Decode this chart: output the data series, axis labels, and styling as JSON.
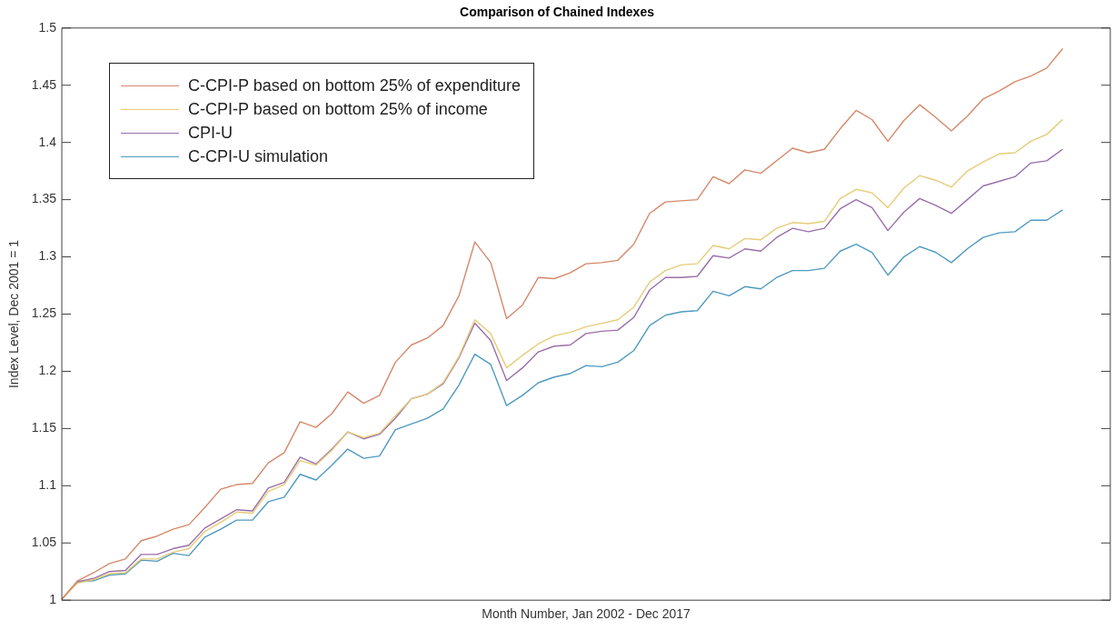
{
  "chart_data": {
    "type": "line",
    "title": "Comparison of Chained Indexes",
    "xlabel": "Month Number, Jan 2002 - Dec 2017",
    "ylabel": "Index Level, Dec 2001 = 1",
    "categories": [
      null,
      null,
      null,
      null,
      null,
      null,
      null,
      null,
      null,
      null,
      null,
      null,
      null,
      null,
      null,
      null,
      null,
      null,
      null,
      null,
      null,
      null,
      null,
      null,
      null,
      null,
      null,
      null,
      null,
      null,
      null,
      null,
      null,
      null,
      null,
      null,
      null,
      null,
      null,
      null,
      null,
      null,
      null,
      null,
      null,
      null,
      null,
      null,
      null,
      null,
      null,
      null,
      null,
      null,
      null,
      null,
      null,
      null,
      null,
      null,
      null,
      null,
      null,
      null,
      null,
      null,
      null
    ],
    "ylim": [
      1,
      1.5
    ],
    "yticks": [
      1,
      1.05,
      1.1,
      1.15,
      1.2,
      1.25,
      1.3,
      1.35,
      1.4,
      1.45,
      1.5
    ],
    "tick_labels": "y",
    "legend": "top left",
    "marker": "none",
    "line_style": "solid",
    "series": [
      {
        "name": "C-CPI-P based on bottom 25% of expenditure",
        "color": "#d4896a",
        "values": [
          1.001,
          1.017,
          1.024,
          1.032,
          1.036,
          1.052,
          1.056,
          1.062,
          1.066,
          1.081,
          1.097,
          1.101,
          1.102,
          1.12,
          1.129,
          1.156,
          1.151,
          1.163,
          1.182,
          1.172,
          1.179,
          1.208,
          1.223,
          1.229,
          1.24,
          1.266,
          1.313,
          1.295,
          1.246,
          1.258,
          1.282,
          1.281,
          1.286,
          1.294,
          1.295,
          1.297,
          1.311,
          1.338,
          1.348,
          1.349,
          1.35,
          1.37,
          1.364,
          1.376,
          1.373,
          1.384,
          1.395,
          1.391,
          1.394,
          1.412,
          1.428,
          1.42,
          1.401,
          1.419,
          1.433,
          1.422,
          1.41,
          1.423,
          1.438,
          1.445,
          1.453,
          1.458,
          1.465,
          1.482,
          null,
          null,
          null
        ]
      },
      {
        "name": "C-CPI-P based on bottom 25% of income",
        "color": "#e6cc78",
        "values": [
          1.001,
          1.015,
          1.018,
          1.023,
          1.024,
          1.036,
          1.036,
          1.042,
          1.045,
          1.06,
          1.068,
          1.077,
          1.076,
          1.095,
          1.101,
          1.122,
          1.118,
          1.131,
          1.147,
          1.142,
          1.146,
          1.161,
          1.176,
          1.18,
          1.19,
          1.213,
          1.245,
          1.233,
          1.203,
          1.214,
          1.224,
          1.231,
          1.234,
          1.239,
          1.242,
          1.245,
          1.256,
          1.278,
          1.288,
          1.293,
          1.294,
          1.31,
          1.307,
          1.316,
          1.315,
          1.325,
          1.33,
          1.329,
          1.331,
          1.351,
          1.359,
          1.356,
          1.343,
          1.36,
          1.371,
          1.367,
          1.361,
          1.375,
          1.383,
          1.39,
          1.391,
          1.401,
          1.407,
          1.42,
          null,
          null,
          null
        ]
      },
      {
        "name": "CPI-U",
        "color": "#9a6fa8",
        "values": [
          1.001,
          1.016,
          1.019,
          1.025,
          1.026,
          1.04,
          1.04,
          1.045,
          1.048,
          1.063,
          1.071,
          1.079,
          1.078,
          1.098,
          1.103,
          1.125,
          1.119,
          1.132,
          1.147,
          1.141,
          1.145,
          1.159,
          1.176,
          1.18,
          1.189,
          1.212,
          1.242,
          1.227,
          1.192,
          1.203,
          1.217,
          1.222,
          1.223,
          1.233,
          1.235,
          1.236,
          1.247,
          1.271,
          1.282,
          1.282,
          1.283,
          1.301,
          1.299,
          1.307,
          1.305,
          1.317,
          1.325,
          1.322,
          1.325,
          1.342,
          1.35,
          1.343,
          1.323,
          1.339,
          1.351,
          1.345,
          1.338,
          1.35,
          1.362,
          1.366,
          1.37,
          1.382,
          1.384,
          1.394,
          null,
          null,
          null
        ]
      },
      {
        "name": "C-CPI-U simulation",
        "color": "#4f9ac0",
        "values": [
          1.001,
          1.016,
          1.017,
          1.022,
          1.023,
          1.035,
          1.034,
          1.041,
          1.039,
          1.055,
          1.062,
          1.07,
          1.07,
          1.086,
          1.09,
          1.11,
          1.105,
          1.118,
          1.132,
          1.124,
          1.126,
          1.149,
          1.154,
          1.159,
          1.167,
          1.188,
          1.215,
          1.206,
          1.17,
          1.179,
          1.19,
          1.195,
          1.198,
          1.205,
          1.204,
          1.208,
          1.218,
          1.24,
          1.249,
          1.252,
          1.253,
          1.27,
          1.266,
          1.274,
          1.272,
          1.282,
          1.288,
          1.288,
          1.29,
          1.305,
          1.311,
          1.304,
          1.284,
          1.3,
          1.309,
          1.304,
          1.295,
          1.307,
          1.317,
          1.321,
          1.322,
          1.332,
          1.332,
          1.341,
          null,
          null,
          null
        ]
      }
    ]
  }
}
